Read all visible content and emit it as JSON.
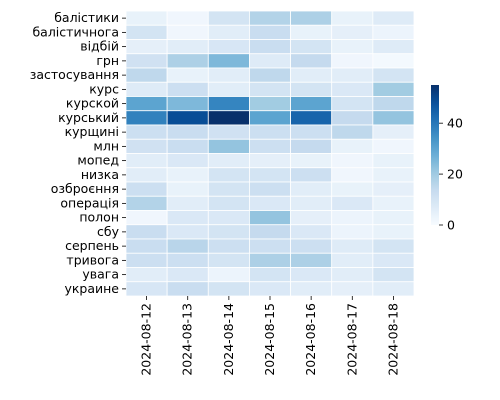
{
  "chart_data": {
    "type": "heatmap",
    "title": "",
    "xlabel": "",
    "ylabel": "",
    "rows": [
      "балістики",
      "балістичнога",
      "відбій",
      "грн",
      "застосування",
      "курс",
      "курской",
      "курський",
      "курщині",
      "млн",
      "мопед",
      "низка",
      "озброєння",
      "операція",
      "полон",
      "сбу",
      "серпень",
      "тривога",
      "увага",
      "украине"
    ],
    "columns": [
      "2024-08-12",
      "2024-08-13",
      "2024-08-14",
      "2024-08-15",
      "2024-08-16",
      "2024-08-17",
      "2024-08-18"
    ],
    "values": [
      [
        4,
        2,
        10,
        17,
        18,
        4,
        7
      ],
      [
        10,
        2,
        6,
        13,
        4,
        5,
        3
      ],
      [
        5,
        6,
        9,
        13,
        10,
        4,
        7
      ],
      [
        11,
        18,
        25,
        7,
        14,
        2,
        1
      ],
      [
        15,
        4,
        6,
        15,
        6,
        6,
        10
      ],
      [
        7,
        12,
        6,
        10,
        10,
        8,
        20
      ],
      [
        30,
        25,
        37,
        20,
        30,
        10,
        15
      ],
      [
        38,
        49,
        55,
        30,
        44,
        14,
        22
      ],
      [
        12,
        13,
        11,
        12,
        12,
        15,
        5
      ],
      [
        11,
        13,
        22,
        12,
        14,
        4,
        2
      ],
      [
        6,
        8,
        6,
        5,
        4,
        2,
        4
      ],
      [
        6,
        4,
        10,
        10,
        12,
        2,
        4
      ],
      [
        12,
        4,
        10,
        12,
        6,
        4,
        5
      ],
      [
        17,
        6,
        10,
        8,
        6,
        8,
        4
      ],
      [
        2,
        8,
        8,
        22,
        5,
        3,
        4
      ],
      [
        13,
        8,
        10,
        14,
        8,
        3,
        4
      ],
      [
        13,
        16,
        12,
        12,
        12,
        7,
        10
      ],
      [
        12,
        12,
        10,
        18,
        18,
        6,
        8
      ],
      [
        6,
        8,
        3,
        10,
        8,
        6,
        10
      ],
      [
        9,
        13,
        10,
        8,
        6,
        5,
        6
      ]
    ],
    "colorbar": {
      "min": 0,
      "max": 55,
      "ticks": [
        0,
        20,
        40
      ]
    },
    "colormap": "Blues",
    "grid": false
  }
}
